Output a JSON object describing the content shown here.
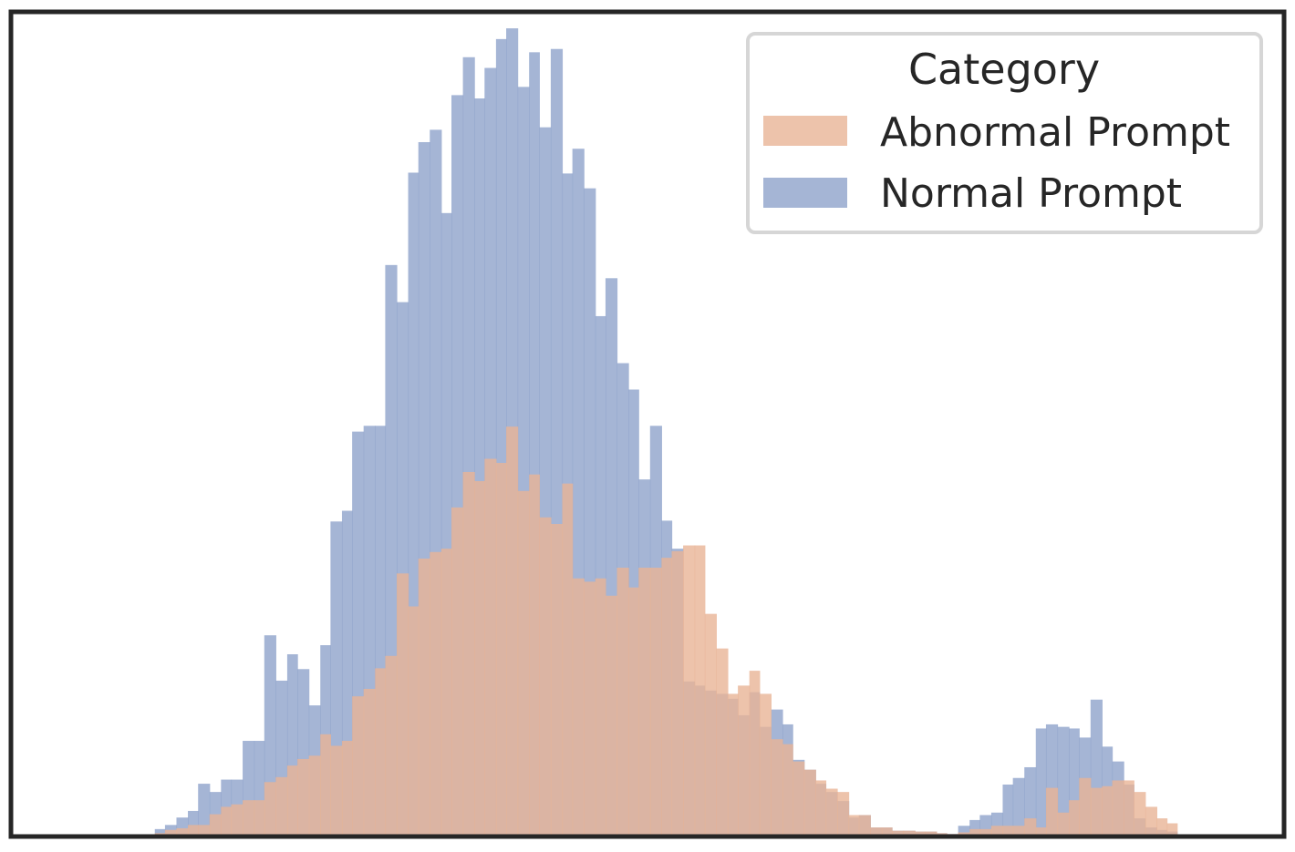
{
  "chart_data": {
    "type": "histogram",
    "title": "",
    "xlabel": "",
    "ylabel": "",
    "axes_visible": false,
    "grid": false,
    "legend": {
      "title": "Category",
      "placement": "top-right",
      "entries": [
        {
          "label": "Abnormal Prompt",
          "color": "#e8b496"
        },
        {
          "label": "Normal Prompt",
          "color": "#8ea2cb"
        }
      ]
    },
    "x_range": [
      0,
      1
    ],
    "y_range": [
      0,
      1
    ],
    "series": [
      {
        "name": "Normal Prompt",
        "color": "#8ea2cb",
        "opacity": 0.8,
        "bins": [
          [
            0.113,
            0.009
          ],
          [
            0.121,
            0.014
          ],
          [
            0.13,
            0.023
          ],
          [
            0.139,
            0.031
          ],
          [
            0.147,
            0.064
          ],
          [
            0.156,
            0.054
          ],
          [
            0.165,
            0.069
          ],
          [
            0.173,
            0.069
          ],
          [
            0.182,
            0.116
          ],
          [
            0.191,
            0.116
          ],
          [
            0.199,
            0.244
          ],
          [
            0.208,
            0.189
          ],
          [
            0.217,
            0.221
          ],
          [
            0.225,
            0.203
          ],
          [
            0.234,
            0.159
          ],
          [
            0.243,
            0.232
          ],
          [
            0.251,
            0.382
          ],
          [
            0.26,
            0.395
          ],
          [
            0.268,
            0.491
          ],
          [
            0.277,
            0.498
          ],
          [
            0.286,
            0.498
          ],
          [
            0.294,
            0.693
          ],
          [
            0.303,
            0.648
          ],
          [
            0.312,
            0.805
          ],
          [
            0.32,
            0.842
          ],
          [
            0.329,
            0.857
          ],
          [
            0.338,
            0.756
          ],
          [
            0.346,
            0.899
          ],
          [
            0.355,
            0.945
          ],
          [
            0.364,
            0.895
          ],
          [
            0.372,
            0.932
          ],
          [
            0.381,
            0.967
          ],
          [
            0.389,
            0.98
          ],
          [
            0.398,
            0.909
          ],
          [
            0.407,
            0.951
          ],
          [
            0.415,
            0.86
          ],
          [
            0.424,
            0.955
          ],
          [
            0.433,
            0.804
          ],
          [
            0.441,
            0.834
          ],
          [
            0.45,
            0.786
          ],
          [
            0.459,
            0.631
          ],
          [
            0.467,
            0.677
          ],
          [
            0.476,
            0.574
          ],
          [
            0.485,
            0.542
          ],
          [
            0.493,
            0.433
          ],
          [
            0.502,
            0.498
          ],
          [
            0.511,
            0.383
          ],
          [
            0.519,
            0.349
          ],
          [
            0.528,
            0.188
          ],
          [
            0.537,
            0.183
          ],
          [
            0.545,
            0.177
          ],
          [
            0.554,
            0.173
          ],
          [
            0.563,
            0.167
          ],
          [
            0.571,
            0.147
          ],
          [
            0.58,
            0.175
          ],
          [
            0.588,
            0.133
          ],
          [
            0.597,
            0.154
          ],
          [
            0.606,
            0.136
          ],
          [
            0.614,
            0.093
          ],
          [
            0.623,
            0.081
          ],
          [
            0.632,
            0.064
          ],
          [
            0.64,
            0.054
          ],
          [
            0.649,
            0.043
          ],
          [
            0.658,
            0.023
          ],
          [
            0.666,
            0.026
          ],
          [
            0.675,
            0.011
          ],
          [
            0.684,
            0.011
          ],
          [
            0.692,
            0.007
          ],
          [
            0.701,
            0.007
          ],
          [
            0.71,
            0.006
          ],
          [
            0.718,
            0.006
          ],
          [
            0.727,
            0.004
          ],
          [
            0.735,
            0.003
          ],
          [
            0.744,
            0.013
          ],
          [
            0.753,
            0.02
          ],
          [
            0.761,
            0.026
          ],
          [
            0.77,
            0.029
          ],
          [
            0.779,
            0.063
          ],
          [
            0.787,
            0.071
          ],
          [
            0.796,
            0.084
          ],
          [
            0.805,
            0.131
          ],
          [
            0.813,
            0.136
          ],
          [
            0.822,
            0.133
          ],
          [
            0.831,
            0.131
          ],
          [
            0.839,
            0.12
          ],
          [
            0.848,
            0.166
          ],
          [
            0.857,
            0.109
          ],
          [
            0.865,
            0.091
          ],
          [
            0.874,
            0.063
          ],
          [
            0.882,
            0.022
          ],
          [
            0.891,
            0.011
          ],
          [
            0.9,
            0.008
          ],
          [
            0.908,
            0.006
          ]
        ]
      },
      {
        "name": "Abnormal Prompt",
        "color": "#e8b496",
        "opacity": 0.8,
        "bins": [
          [
            0.113,
            0.004
          ],
          [
            0.121,
            0.008
          ],
          [
            0.13,
            0.01
          ],
          [
            0.139,
            0.014
          ],
          [
            0.147,
            0.014
          ],
          [
            0.156,
            0.027
          ],
          [
            0.165,
            0.036
          ],
          [
            0.173,
            0.039
          ],
          [
            0.182,
            0.044
          ],
          [
            0.191,
            0.044
          ],
          [
            0.199,
            0.066
          ],
          [
            0.208,
            0.072
          ],
          [
            0.217,
            0.086
          ],
          [
            0.225,
            0.094
          ],
          [
            0.234,
            0.098
          ],
          [
            0.243,
            0.124
          ],
          [
            0.251,
            0.11
          ],
          [
            0.26,
            0.116
          ],
          [
            0.268,
            0.17
          ],
          [
            0.277,
            0.179
          ],
          [
            0.286,
            0.204
          ],
          [
            0.294,
            0.219
          ],
          [
            0.303,
            0.319
          ],
          [
            0.312,
            0.279
          ],
          [
            0.32,
            0.337
          ],
          [
            0.329,
            0.345
          ],
          [
            0.338,
            0.349
          ],
          [
            0.346,
            0.399
          ],
          [
            0.355,
            0.442
          ],
          [
            0.364,
            0.431
          ],
          [
            0.372,
            0.458
          ],
          [
            0.381,
            0.453
          ],
          [
            0.389,
            0.497
          ],
          [
            0.398,
            0.419
          ],
          [
            0.407,
            0.439
          ],
          [
            0.415,
            0.387
          ],
          [
            0.424,
            0.379
          ],
          [
            0.433,
            0.428
          ],
          [
            0.441,
            0.313
          ],
          [
            0.45,
            0.309
          ],
          [
            0.459,
            0.313
          ],
          [
            0.467,
            0.292
          ],
          [
            0.476,
            0.326
          ],
          [
            0.485,
            0.302
          ],
          [
            0.493,
            0.326
          ],
          [
            0.502,
            0.326
          ],
          [
            0.511,
            0.338
          ],
          [
            0.519,
            0.346
          ],
          [
            0.528,
            0.353
          ],
          [
            0.537,
            0.353
          ],
          [
            0.545,
            0.27
          ],
          [
            0.554,
            0.228
          ],
          [
            0.563,
            0.173
          ],
          [
            0.571,
            0.183
          ],
          [
            0.58,
            0.201
          ],
          [
            0.588,
            0.173
          ],
          [
            0.597,
            0.118
          ],
          [
            0.606,
            0.112
          ],
          [
            0.614,
            0.091
          ],
          [
            0.623,
            0.081
          ],
          [
            0.632,
            0.068
          ],
          [
            0.64,
            0.058
          ],
          [
            0.649,
            0.054
          ],
          [
            0.658,
            0.026
          ],
          [
            0.666,
            0.026
          ],
          [
            0.675,
            0.011
          ],
          [
            0.684,
            0.011
          ],
          [
            0.692,
            0.007
          ],
          [
            0.701,
            0.007
          ],
          [
            0.71,
            0.006
          ],
          [
            0.718,
            0.006
          ],
          [
            0.727,
            0.004
          ],
          [
            0.735,
            0.003
          ],
          [
            0.744,
            0.005
          ],
          [
            0.753,
            0.009
          ],
          [
            0.761,
            0.009
          ],
          [
            0.77,
            0.013
          ],
          [
            0.779,
            0.013
          ],
          [
            0.787,
            0.013
          ],
          [
            0.796,
            0.022
          ],
          [
            0.805,
            0.011
          ],
          [
            0.813,
            0.059
          ],
          [
            0.822,
            0.029
          ],
          [
            0.831,
            0.044
          ],
          [
            0.839,
            0.071
          ],
          [
            0.848,
            0.059
          ],
          [
            0.857,
            0.061
          ],
          [
            0.865,
            0.068
          ],
          [
            0.874,
            0.068
          ],
          [
            0.882,
            0.054
          ],
          [
            0.891,
            0.036
          ],
          [
            0.9,
            0.022
          ],
          [
            0.908,
            0.016
          ]
        ]
      }
    ]
  }
}
